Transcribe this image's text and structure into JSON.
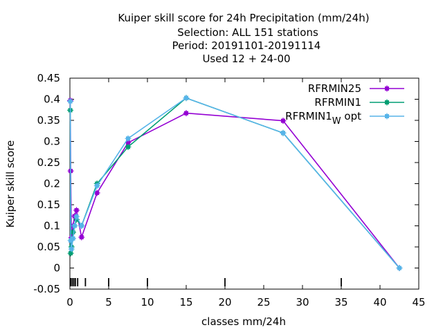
{
  "chart_data": {
    "type": "line",
    "title_lines": [
      "Kuiper skill score  for 24h Precipitation (mm/24h)",
      "Selection: ALL    151 stations",
      "Period: 20191101-20191114",
      "Used  12 + 24-00"
    ],
    "xlabel": "classes mm/24h",
    "ylabel": "Kuiper skill score",
    "xlim": [
      0,
      45
    ],
    "ylim": [
      -0.05,
      0.45
    ],
    "xticks": [
      "0",
      "5",
      "10",
      "15",
      "20",
      "25",
      "30",
      "35",
      "40",
      "45"
    ],
    "yticks": [
      "-0.05",
      "0",
      "0.05",
      "0.1",
      "0.15",
      "0.2",
      "0.25",
      "0.3",
      "0.35",
      "0.4",
      "0.45"
    ],
    "legend_position": "top-right",
    "class_marks": [
      0.1,
      0.3,
      0.5,
      0.7,
      1.0,
      2.0,
      5.0,
      10.0,
      20.0,
      35.0
    ],
    "series": [
      {
        "name": "RFRMIN25",
        "color": "#9400d3",
        "x": [
          0.05,
          0.1,
          0.2,
          0.4,
          0.6,
          0.85,
          1.5,
          3.5,
          7.5,
          15,
          27.5,
          42.5
        ],
        "y": [
          0.397,
          0.23,
          0.072,
          0.1,
          0.123,
          0.137,
          0.073,
          0.178,
          0.297,
          0.367,
          0.349,
          0.0
        ]
      },
      {
        "name": "RFRMIN1",
        "color": "#009e73",
        "x": [
          0.05,
          0.1,
          0.2,
          0.4,
          0.6,
          0.85,
          1.5,
          3.5,
          7.5,
          15,
          27.5,
          42.5
        ],
        "y": [
          0.374,
          0.035,
          0.05,
          0.085,
          0.1,
          0.115,
          0.1,
          0.2,
          0.287,
          0.403,
          0.32,
          0.0
        ]
      },
      {
        "name_main": "RFRMIN1",
        "name_sub": "W",
        "name_suffix": " opt",
        "color": "#56b4e9",
        "x": [
          0.05,
          0.1,
          0.2,
          0.4,
          0.6,
          0.85,
          1.5,
          3.5,
          7.5,
          15,
          27.5,
          42.5
        ],
        "y": [
          0.395,
          0.065,
          0.045,
          0.07,
          0.1,
          0.122,
          0.1,
          0.195,
          0.307,
          0.403,
          0.32,
          0.0
        ]
      }
    ]
  }
}
